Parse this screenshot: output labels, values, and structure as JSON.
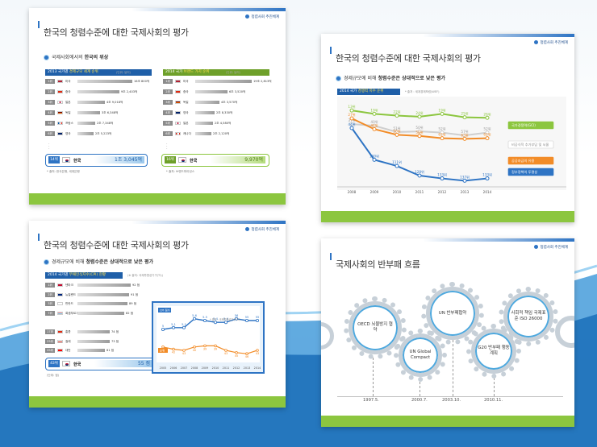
{
  "common": {
    "logo": "청렴사회 추진체계",
    "title": "한국의 청렴수준에 대한 국제사회의 평가"
  },
  "slide1": {
    "subtitle_pre": "국제사회에서의 ",
    "subtitle_bold": "한국의 위상",
    "left": {
      "head_pre": "2013 국가별 ",
      "head_hl": "경제규모 세계 순위",
      "unit": "(단위: 달러)",
      "rows": [
        [
          "1위",
          "미국",
          "16조 800억"
        ],
        [
          "2위",
          "중국",
          "9조 2,403억"
        ],
        [
          "3위",
          "일본",
          "4조 9,018억"
        ],
        [
          "4위",
          "독일",
          "3조 6,348억"
        ],
        [
          "5위",
          "프랑스",
          "2조 7,348억"
        ],
        [
          "6위",
          "영국",
          "2조 5,223억"
        ]
      ],
      "hl": {
        "rank": "14위",
        "name": "한국",
        "value": "1조 3,045억"
      },
      "src": "* 출처: 한국은행, 세계은행"
    },
    "right": {
      "head_pre": "2014 국가 ",
      "head_hl": "브랜드 가치 순위",
      "unit": "(단위: 달러)",
      "rows": [
        [
          "1위",
          "미국",
          "19조 2,813억"
        ],
        [
          "2위",
          "중국",
          "6조 3,520억"
        ],
        [
          "3위",
          "독일",
          "4조 3,570억"
        ],
        [
          "4위",
          "영국",
          "2조 8,330억"
        ],
        [
          "5위",
          "일본",
          "2조 4,580억"
        ],
        [
          "6위",
          "캐나다",
          "2조 2,120억"
        ]
      ],
      "hl": {
        "rank": "16위",
        "name": "한국",
        "value": "9,970억"
      },
      "src": "* 출처: 브랜드파이낸스"
    }
  },
  "slide2": {
    "subtitle_pre": "경제규모에 비해 ",
    "subtitle_bold": "청렴수준은 상대적으로 낮은 평가",
    "head_pre": "2014 국가 ",
    "head_hl": "경쟁력 지수 순위",
    "src": "* 출처 : 세계경제포럼(WEF)",
    "legend": [
      "국가경쟁력(GCI)",
      "비공식적 추가부담 및 뇌물",
      "공공자금의 유용",
      "정부정책의 투명성"
    ],
    "colors": [
      "#8cc63f",
      "#e6e6e6",
      "#f28c28",
      "#2e74c4"
    ],
    "chart_data": {
      "type": "line",
      "x": [
        "2008",
        "2009",
        "2010",
        "2011",
        "2012",
        "2013",
        "2014"
      ],
      "series": [
        {
          "name": "국가경쟁력(GCI)",
          "values": [
            13,
            19,
            22,
            24,
            19,
            25,
            26
          ]
        },
        {
          "name": "비공식적 추가부담 및 뇌물",
          "values": [
            37,
            40,
            51,
            50,
            52,
            57,
            52
          ]
        },
        {
          "name": "공공자금의 유용",
          "values": [
            27,
            46,
            56,
            58,
            62,
            63,
            62
          ]
        },
        {
          "name": "정부정책의 투명성",
          "values": [
            44,
            100,
            111,
            128,
            133,
            137,
            133
          ]
        }
      ]
    }
  },
  "slide3": {
    "subtitle_pre": "경제규모에 비해 ",
    "subtitle_bold": "청렴수준은 상대적으로 낮은 평가",
    "head_pre": "2014 국가별 ",
    "head_hl": "부패인식지수(CPI) 현황",
    "unit": "(※ 출처: 국제투명성기구(TI))",
    "rows": [
      [
        "1위",
        "덴마크",
        "92 점"
      ],
      [
        "2위",
        "뉴질랜드",
        "91 점"
      ],
      [
        "3위",
        "핀란드",
        "89 점"
      ],
      [
        "7위",
        "룩셈부르크",
        "82 점"
      ],
      [
        "17위",
        "홍콩",
        "74 점"
      ],
      [
        "25위",
        "칠레",
        "73 점"
      ],
      [
        "35위",
        "대만",
        "61 점"
      ]
    ],
    "hl": {
      "rank": "43위",
      "name": "한국",
      "value": "55 점"
    },
    "unit_note": "(단위: 점)",
    "inset": {
      "label_blue": "CPI 점수",
      "label_orange": "순위",
      "note": "* 출처 : 국제투명성기구(TI)"
    },
    "chart_data": {
      "type": "line",
      "x": [
        "2005",
        "2006",
        "2007",
        "2008",
        "2009",
        "2010",
        "2011",
        "2012",
        "2013",
        "2014"
      ],
      "series": [
        {
          "name": "CPI 점수",
          "values": [
            5.0,
            5.1,
            5.1,
            5.6,
            5.5,
            5.4,
            5.4,
            56,
            55,
            55
          ]
        },
        {
          "name": "순위",
          "values": [
            40,
            42,
            43,
            40,
            39,
            39,
            43,
            45,
            46,
            43
          ]
        }
      ]
    }
  },
  "slide4": {
    "title": "국제사회의 반부패 흐름",
    "gears": [
      "OECD 뇌물방지 협약",
      "UN Global Compact",
      "UN 반부패협약",
      "G20 반부패 행동계획",
      "사회적 책임 국제표준 ISO 26000"
    ],
    "timeline": [
      "1997.5.",
      "2000.7.",
      "2003.10.",
      "2010.11."
    ]
  }
}
